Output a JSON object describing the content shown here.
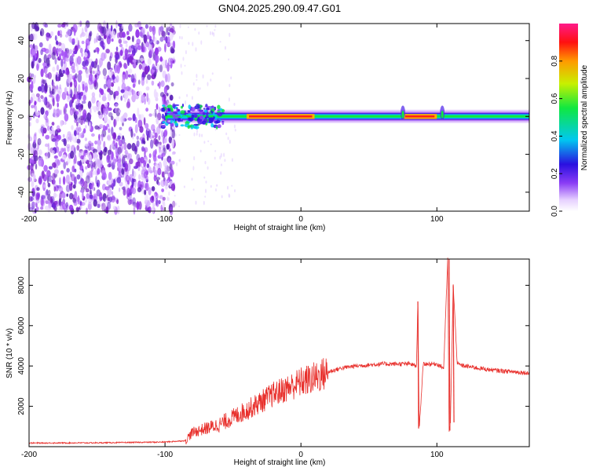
{
  "title": "GN04.2025.290.09.47.G01",
  "colors": {
    "axis": "#000000",
    "snr_line": "#e8302c",
    "background": "#ffffff"
  },
  "chart_data": [
    {
      "type": "heatmap",
      "name": "spectrogram",
      "xlabel": "Height of straight line (km)",
      "ylabel": "Frequency (Hz)",
      "xlim": [
        -200,
        168
      ],
      "ylim": [
        -50,
        49
      ],
      "xticks": [
        -200,
        -100,
        0,
        100
      ],
      "yticks": [
        -40,
        -20,
        0,
        20,
        40
      ],
      "noise_region_x": [
        -200,
        -100
      ],
      "signal_band": {
        "x_start": -100,
        "x_end": 168,
        "center_freq": 0,
        "width_hz": 6,
        "high_amplitude_segments": [
          [
            -40,
            10
          ],
          [
            75,
            100
          ]
        ],
        "disturbances_x": [
          75,
          104
        ]
      },
      "colorbar": {
        "label": "Normalized spectral amplitude",
        "range": [
          0.0,
          1.0
        ],
        "ticks": [
          "0.0",
          "0.2",
          "0.4",
          "0.6",
          "0.8"
        ],
        "tick_values": [
          0.0,
          0.2,
          0.4,
          0.6,
          0.8
        ]
      }
    },
    {
      "type": "line",
      "name": "snr",
      "xlabel": "Height of straight line (km)",
      "ylabel": "SNR (10 * v/v)",
      "xlim": [
        -200,
        168
      ],
      "ylim": [
        0,
        9300
      ],
      "xticks": [
        -200,
        -100,
        0,
        100
      ],
      "yticks": [
        2000,
        4000,
        6000,
        8000
      ],
      "series": [
        {
          "name": "SNR",
          "x": [
            -200,
            -150,
            -100,
            -85,
            -80,
            -60,
            -40,
            -20,
            0,
            10,
            20,
            30,
            40,
            60,
            80,
            85,
            86,
            87,
            90,
            100,
            105,
            108,
            109,
            110,
            112,
            115,
            120,
            140,
            168
          ],
          "y": [
            180,
            190,
            230,
            300,
            700,
            1100,
            1800,
            2600,
            3200,
            3400,
            3700,
            3900,
            4000,
            4100,
            4100,
            4000,
            7200,
            900,
            4100,
            4100,
            3900,
            9300,
            800,
            1200,
            8000,
            4100,
            4000,
            3800,
            3650
          ]
        }
      ],
      "spikes": [
        {
          "x": 86,
          "up": 7200,
          "down": 900
        },
        {
          "x": 109,
          "up": 9300,
          "down": 800
        },
        {
          "x": 112,
          "up": 8000,
          "down": 1200
        }
      ]
    }
  ]
}
